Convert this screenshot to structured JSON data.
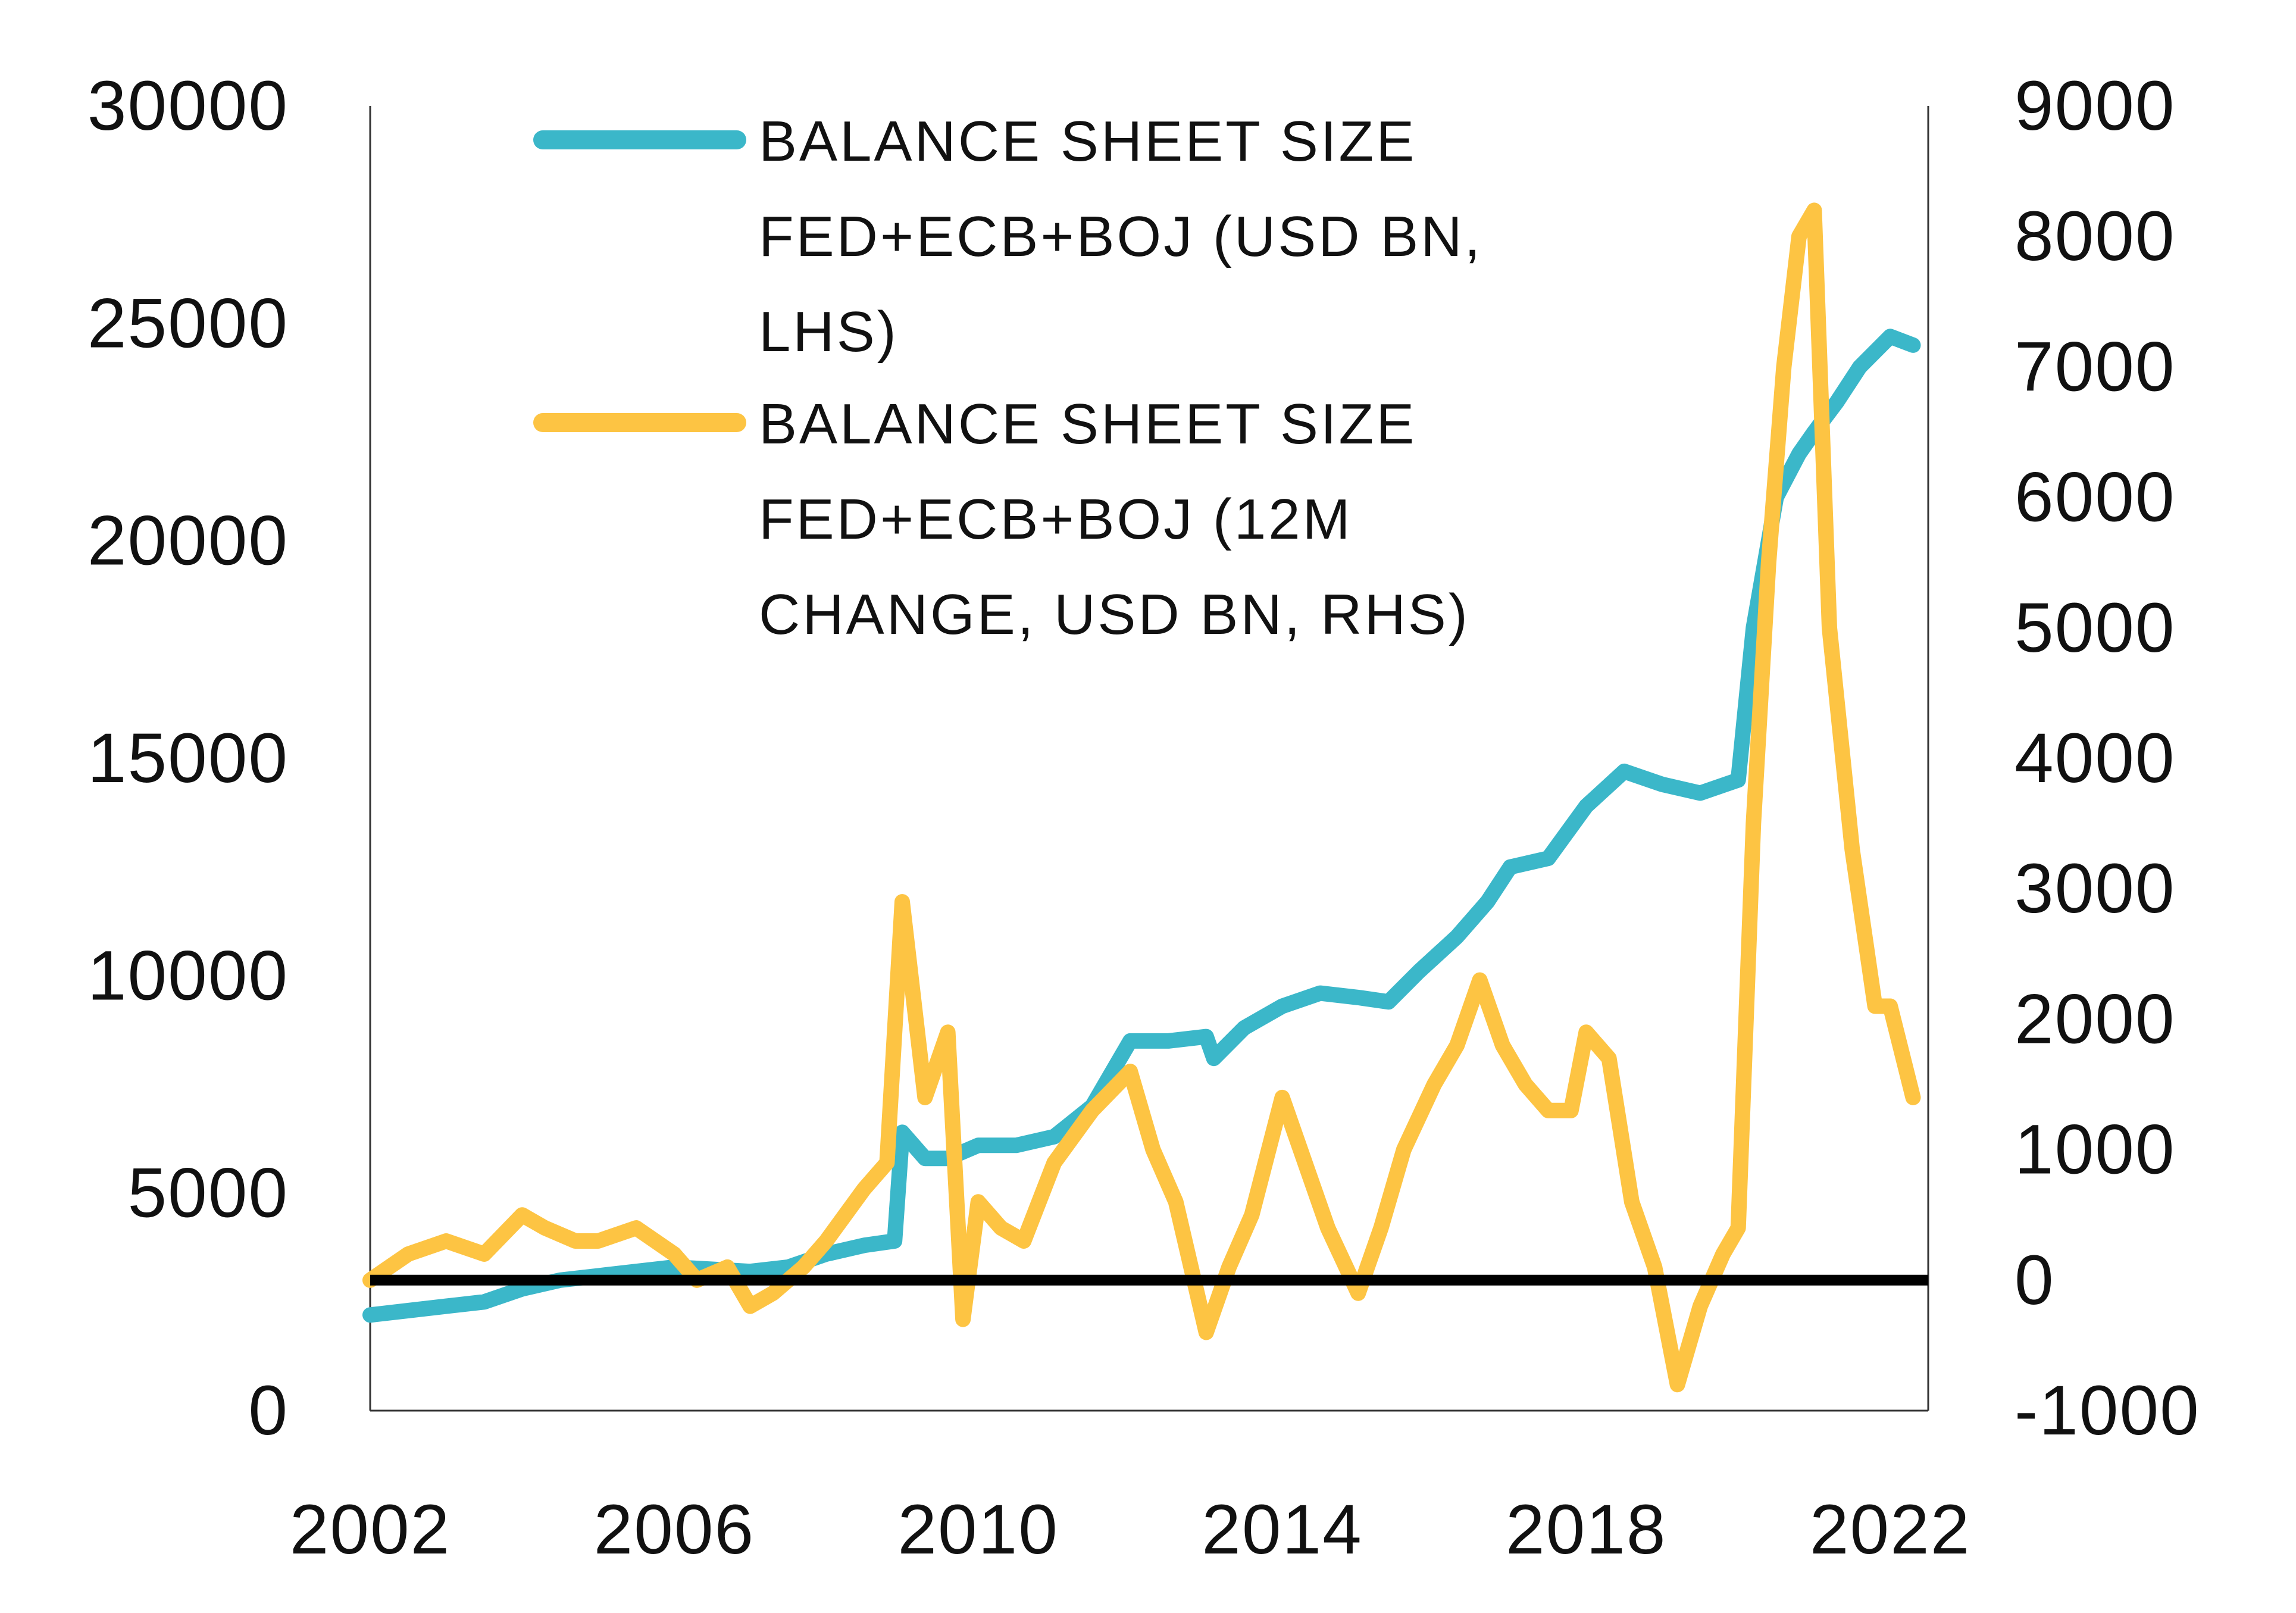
{
  "chart_data": {
    "type": "line",
    "x_axis": {
      "min": 2002,
      "max": 2022.5,
      "ticks": [
        "2002",
        "2006",
        "2010",
        "2014",
        "2018",
        "2022"
      ]
    },
    "y_left": {
      "min": 0,
      "max": 30000,
      "ticks": [
        "0",
        "5000",
        "10000",
        "15000",
        "20000",
        "25000",
        "30000"
      ]
    },
    "y_right": {
      "min": -1000,
      "max": 9000,
      "ticks": [
        "-1000",
        "0",
        "1000",
        "2000",
        "3000",
        "4000",
        "5000",
        "6000",
        "7000",
        "8000",
        "9000"
      ]
    },
    "zero_line_right": 0,
    "legend_position": "top-left",
    "series": [
      {
        "name_lines": [
          "BALANCE SHEET SIZE",
          "FED+ECB+BOJ (USD BN,",
          "LHS)"
        ],
        "axis": "left",
        "color": "#3BB7C9",
        "points": [
          [
            2002.0,
            2200
          ],
          [
            2002.5,
            2300
          ],
          [
            2003.0,
            2400
          ],
          [
            2003.5,
            2500
          ],
          [
            2004.0,
            2800
          ],
          [
            2004.5,
            3000
          ],
          [
            2005.0,
            3100
          ],
          [
            2005.5,
            3200
          ],
          [
            2006.0,
            3300
          ],
          [
            2006.5,
            3250
          ],
          [
            2007.0,
            3200
          ],
          [
            2007.5,
            3300
          ],
          [
            2008.0,
            3600
          ],
          [
            2008.5,
            3800
          ],
          [
            2008.9,
            3900
          ],
          [
            2009.0,
            6400
          ],
          [
            2009.3,
            5800
          ],
          [
            2009.6,
            5800
          ],
          [
            2010.0,
            6100
          ],
          [
            2010.5,
            6100
          ],
          [
            2011.0,
            6300
          ],
          [
            2011.5,
            7000
          ],
          [
            2012.0,
            8500
          ],
          [
            2012.5,
            8500
          ],
          [
            2013.0,
            8600
          ],
          [
            2013.1,
            8100
          ],
          [
            2013.5,
            8800
          ],
          [
            2014.0,
            9300
          ],
          [
            2014.5,
            9600
          ],
          [
            2015.0,
            9500
          ],
          [
            2015.4,
            9400
          ],
          [
            2015.8,
            10100
          ],
          [
            2016.3,
            10900
          ],
          [
            2016.7,
            11700
          ],
          [
            2017.0,
            12500
          ],
          [
            2017.5,
            12700
          ],
          [
            2018.0,
            13900
          ],
          [
            2018.5,
            14700
          ],
          [
            2019.0,
            14400
          ],
          [
            2019.5,
            14200
          ],
          [
            2020.0,
            14500
          ],
          [
            2020.2,
            18000
          ],
          [
            2020.5,
            21000
          ],
          [
            2020.8,
            22000
          ],
          [
            2021.0,
            22500
          ],
          [
            2021.3,
            23200
          ],
          [
            2021.6,
            24000
          ],
          [
            2022.0,
            24700
          ],
          [
            2022.3,
            24500
          ]
        ]
      },
      {
        "name_lines": [
          "BALANCE SHEET SIZE",
          "FED+ECB+BOJ (12M",
          "CHANGE, USD BN, RHS)"
        ],
        "axis": "right",
        "color": "#FDC443",
        "points": [
          [
            2002.0,
            0
          ],
          [
            2002.5,
            200
          ],
          [
            2003.0,
            300
          ],
          [
            2003.5,
            200
          ],
          [
            2004.0,
            500
          ],
          [
            2004.3,
            400
          ],
          [
            2004.7,
            300
          ],
          [
            2005.0,
            300
          ],
          [
            2005.5,
            400
          ],
          [
            2006.0,
            200
          ],
          [
            2006.3,
            0
          ],
          [
            2006.7,
            100
          ],
          [
            2007.0,
            -200
          ],
          [
            2007.3,
            -100
          ],
          [
            2007.7,
            100
          ],
          [
            2008.0,
            300
          ],
          [
            2008.5,
            700
          ],
          [
            2008.8,
            900
          ],
          [
            2009.0,
            2900
          ],
          [
            2009.3,
            1400
          ],
          [
            2009.6,
            1900
          ],
          [
            2009.8,
            -300
          ],
          [
            2010.0,
            600
          ],
          [
            2010.3,
            400
          ],
          [
            2010.6,
            300
          ],
          [
            2011.0,
            900
          ],
          [
            2011.5,
            1300
          ],
          [
            2012.0,
            1600
          ],
          [
            2012.3,
            1000
          ],
          [
            2012.6,
            600
          ],
          [
            2013.0,
            -400
          ],
          [
            2013.3,
            100
          ],
          [
            2013.6,
            500
          ],
          [
            2014.0,
            1400
          ],
          [
            2014.3,
            900
          ],
          [
            2014.6,
            400
          ],
          [
            2015.0,
            -100
          ],
          [
            2015.3,
            400
          ],
          [
            2015.6,
            1000
          ],
          [
            2016.0,
            1500
          ],
          [
            2016.3,
            1800
          ],
          [
            2016.6,
            2300
          ],
          [
            2016.9,
            1800
          ],
          [
            2017.2,
            1500
          ],
          [
            2017.5,
            1300
          ],
          [
            2017.8,
            1300
          ],
          [
            2018.0,
            1900
          ],
          [
            2018.3,
            1700
          ],
          [
            2018.6,
            600
          ],
          [
            2018.9,
            100
          ],
          [
            2019.2,
            -800
          ],
          [
            2019.5,
            -200
          ],
          [
            2019.8,
            200
          ],
          [
            2020.0,
            400
          ],
          [
            2020.2,
            3500
          ],
          [
            2020.4,
            5500
          ],
          [
            2020.6,
            7000
          ],
          [
            2020.8,
            8000
          ],
          [
            2021.0,
            8200
          ],
          [
            2021.2,
            5000
          ],
          [
            2021.5,
            3300
          ],
          [
            2021.8,
            2100
          ],
          [
            2022.0,
            2100
          ],
          [
            2022.3,
            1400
          ]
        ]
      }
    ]
  }
}
